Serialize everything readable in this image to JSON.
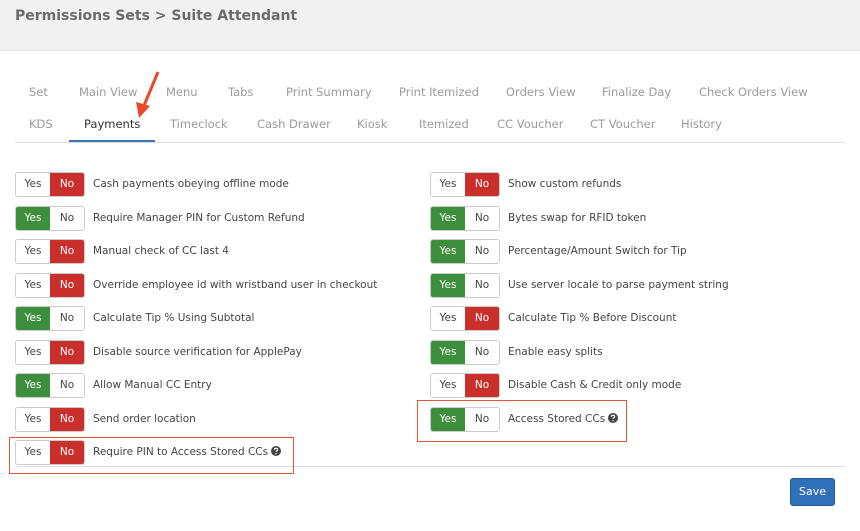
{
  "header": {
    "title": "Permissions Sets > Suite Attendant"
  },
  "toggle": {
    "yes": "Yes",
    "no": "No"
  },
  "tabs": [
    [
      {
        "label": "Set",
        "active": false
      },
      {
        "label": "Main View",
        "active": false
      },
      {
        "label": "Menu",
        "active": false
      },
      {
        "label": "Tabs",
        "active": false
      },
      {
        "label": "Print Summary",
        "active": false
      },
      {
        "label": "Print Itemized",
        "active": false
      },
      {
        "label": "Orders View",
        "active": false
      },
      {
        "label": "Finalize Day",
        "active": false
      },
      {
        "label": "Check Orders View",
        "active": false
      }
    ],
    [
      {
        "label": "KDS",
        "active": false
      },
      {
        "label": "Payments",
        "active": true
      },
      {
        "label": "Timeclock",
        "active": false
      },
      {
        "label": "Cash Drawer",
        "active": false
      },
      {
        "label": "Kiosk",
        "active": false
      },
      {
        "label": "Itemized",
        "active": false
      },
      {
        "label": "CC Voucher",
        "active": false
      },
      {
        "label": "CT Voucher",
        "active": false
      },
      {
        "label": "History",
        "active": false
      }
    ]
  ],
  "settings": {
    "left": [
      {
        "label": "Cash payments obeying offline mode",
        "enabled": false,
        "help": false,
        "highlighted": false
      },
      {
        "label": "Require Manager PIN for Custom Refund",
        "enabled": true,
        "help": false,
        "highlighted": false
      },
      {
        "label": "Manual check of CC last 4",
        "enabled": false,
        "help": false,
        "highlighted": false
      },
      {
        "label": "Override employee id with wristband user in checkout",
        "enabled": false,
        "help": false,
        "highlighted": false
      },
      {
        "label": "Calculate Tip % Using Subtotal",
        "enabled": true,
        "help": false,
        "highlighted": false
      },
      {
        "label": "Disable source verification for ApplePay",
        "enabled": false,
        "help": false,
        "highlighted": false
      },
      {
        "label": "Allow Manual CC Entry",
        "enabled": true,
        "help": false,
        "highlighted": false
      },
      {
        "label": "Send order location",
        "enabled": false,
        "help": false,
        "highlighted": false
      },
      {
        "label": "Require PIN to Access Stored CCs",
        "enabled": false,
        "help": true,
        "highlighted": true
      }
    ],
    "right": [
      {
        "label": "Show custom refunds",
        "enabled": false,
        "help": false,
        "highlighted": false
      },
      {
        "label": "Bytes swap for RFID token",
        "enabled": true,
        "help": false,
        "highlighted": false
      },
      {
        "label": "Percentage/Amount Switch for Tip",
        "enabled": true,
        "help": false,
        "highlighted": false
      },
      {
        "label": "Use server locale to parse payment string",
        "enabled": true,
        "help": false,
        "highlighted": false
      },
      {
        "label": "Calculate Tip % Before Discount",
        "enabled": false,
        "help": false,
        "highlighted": false
      },
      {
        "label": "Enable easy splits",
        "enabled": true,
        "help": false,
        "highlighted": false
      },
      {
        "label": "Disable Cash & Credit only mode",
        "enabled": false,
        "help": false,
        "highlighted": false
      },
      {
        "label": "Access Stored CCs",
        "enabled": true,
        "help": true,
        "highlighted": true
      }
    ]
  },
  "save_button": "Save"
}
